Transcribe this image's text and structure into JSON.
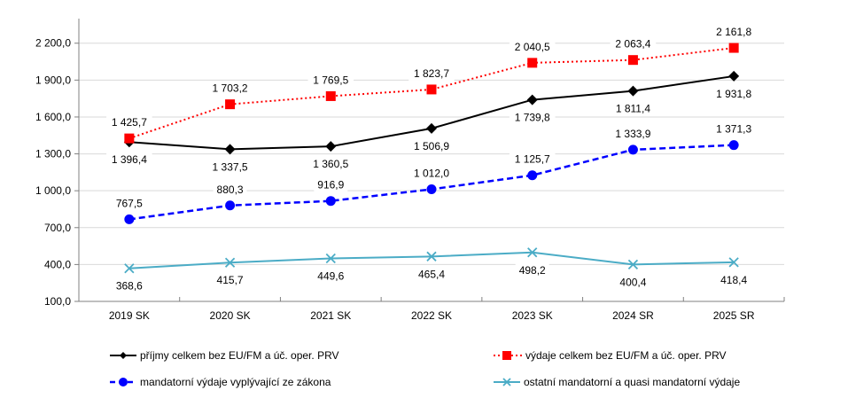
{
  "chart_data": {
    "type": "line",
    "title": "",
    "xlabel": "",
    "ylabel": "",
    "categories": [
      "2019 SK",
      "2020 SK",
      "2021 SK",
      "2022 SK",
      "2023 SK",
      "2024 SR",
      "2025 SR"
    ],
    "ylim": [
      100,
      2400
    ],
    "yticks": [
      100,
      400,
      700,
      1000,
      1300,
      1600,
      1900,
      2200
    ],
    "ytick_labels": [
      "100,0",
      "400,0",
      "700,0",
      "1 000,0",
      "1 300,0",
      "1 600,0",
      "1 900,0",
      "2 200,0"
    ],
    "grid": true,
    "legend_position": "bottom",
    "series": [
      {
        "name": "příjmy celkem bez EU/FM a úč. oper. PRV",
        "color": "#000000",
        "dash": "solid",
        "marker": "diamond",
        "values": [
          1396.4,
          1337.5,
          1360.5,
          1506.9,
          1739.8,
          1811.4,
          1931.8
        ],
        "labels": [
          "1 396,4",
          "1 337,5",
          "1 360,5",
          "1 506,9",
          "1 739,8",
          "1 811,4",
          "1 931,8"
        ],
        "label_position": "below"
      },
      {
        "name": "výdaje celkem bez EU/FM a úč. oper. PRV",
        "color": "#FF0000",
        "dash": "dotted",
        "marker": "square",
        "values": [
          1425.7,
          1703.2,
          1769.5,
          1823.7,
          2040.5,
          2063.4,
          2161.8
        ],
        "labels": [
          "1 425,7",
          "1 703,2",
          "1 769,5",
          "1 823,7",
          "2 040,5",
          "2 063,4",
          "2 161,8"
        ],
        "label_position": "above"
      },
      {
        "name": "mandatorní výdaje vyplývající ze zákona",
        "color": "#0000FF",
        "dash": "dashed",
        "marker": "circle",
        "values": [
          767.5,
          880.3,
          916.9,
          1012.0,
          1125.7,
          1333.9,
          1371.3
        ],
        "labels": [
          "767,5",
          "880,3",
          "916,9",
          "1 012,0",
          "1 125,7",
          "1 333,9",
          "1 371,3"
        ],
        "label_position": "above"
      },
      {
        "name": "ostatní mandatorní a quasi mandatorní výdaje",
        "color": "#4BACC6",
        "dash": "solid",
        "marker": "x",
        "values": [
          368.6,
          415.7,
          449.6,
          465.4,
          498.2,
          400.4,
          418.4
        ],
        "labels": [
          "368,6",
          "415,7",
          "449,6",
          "465,4",
          "498,2",
          "400,4",
          "418,4"
        ],
        "label_position": "below"
      }
    ]
  }
}
